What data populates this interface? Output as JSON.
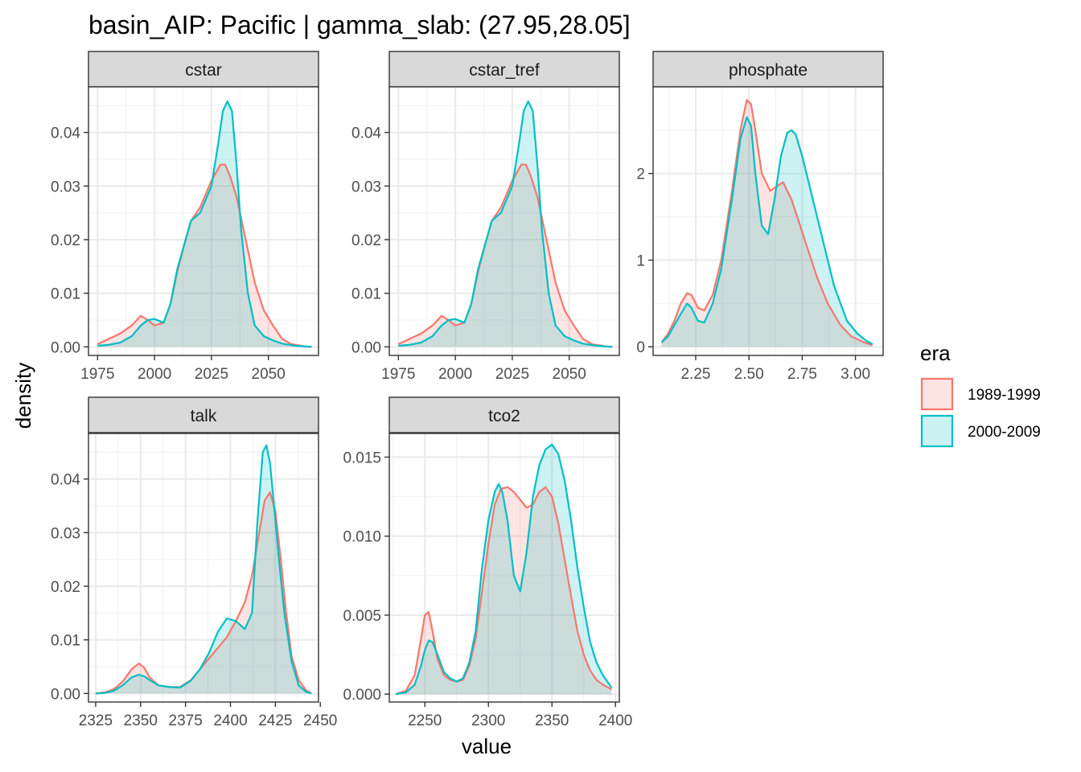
{
  "figure": {
    "title": "basin_AIP: Pacific | gamma_slab: (27.95,28.05]",
    "xlabel": "value",
    "ylabel": "density"
  },
  "legend": {
    "title": "era",
    "entries": [
      {
        "label": "1989-1999",
        "color": "#F8766D",
        "fill": "#F8766D",
        "fill_opacity": 0.2
      },
      {
        "label": "2000-2009",
        "color": "#00BFC4",
        "fill": "#00BFC4",
        "fill_opacity": 0.2
      }
    ]
  },
  "chart_data": [
    {
      "type": "area",
      "title": "cstar",
      "xlim": [
        1971,
        2072
      ],
      "ylim": [
        -0.0016,
        0.0485
      ],
      "x_ticks": [
        1975,
        2000,
        2025,
        2050
      ],
      "x_tick_labels": [
        "1975",
        "2000",
        "2025",
        "2050"
      ],
      "y_ticks": [
        0.0,
        0.01,
        0.02,
        0.03,
        0.04
      ],
      "y_tick_labels": [
        "0.00",
        "0.01",
        "0.02",
        "0.03",
        "0.04"
      ],
      "series": [
        {
          "name": "1989-1999",
          "x": [
            1975,
            1980,
            1985,
            1990,
            1994,
            1997,
            2000,
            2004,
            2007,
            2010,
            2013,
            2016,
            2020,
            2025,
            2029,
            2031,
            2033,
            2036,
            2040,
            2044,
            2048,
            2052,
            2056,
            2060,
            2066,
            2069
          ],
          "y": [
            0.0005,
            0.0015,
            0.0025,
            0.004,
            0.0058,
            0.005,
            0.004,
            0.0045,
            0.008,
            0.014,
            0.019,
            0.0235,
            0.026,
            0.031,
            0.034,
            0.034,
            0.032,
            0.028,
            0.02,
            0.012,
            0.0068,
            0.004,
            0.0015,
            0.0005,
            0.0001,
            0.0
          ]
        },
        {
          "name": "2000-2009",
          "x": [
            1975,
            1980,
            1985,
            1990,
            1994,
            1997,
            2000,
            2004,
            2007,
            2010,
            2013,
            2016,
            2020,
            2025,
            2028,
            2030,
            2032,
            2034,
            2036,
            2038,
            2041,
            2044,
            2048,
            2052,
            2056,
            2062,
            2069
          ],
          "y": [
            0.0002,
            0.0004,
            0.0008,
            0.002,
            0.004,
            0.005,
            0.0052,
            0.0045,
            0.008,
            0.0145,
            0.019,
            0.0235,
            0.025,
            0.03,
            0.038,
            0.044,
            0.0458,
            0.044,
            0.034,
            0.022,
            0.01,
            0.004,
            0.002,
            0.0012,
            0.0006,
            0.0002,
            0.0
          ]
        }
      ]
    },
    {
      "type": "area",
      "title": "cstar_tref",
      "xlim": [
        1971,
        2072
      ],
      "ylim": [
        -0.0016,
        0.0485
      ],
      "x_ticks": [
        1975,
        2000,
        2025,
        2050
      ],
      "x_tick_labels": [
        "1975",
        "2000",
        "2025",
        "2050"
      ],
      "y_ticks": [
        0.0,
        0.01,
        0.02,
        0.03,
        0.04
      ],
      "y_tick_labels": [
        "0.00",
        "0.01",
        "0.02",
        "0.03",
        "0.04"
      ],
      "series": [
        {
          "name": "1989-1999",
          "x": [
            1975,
            1980,
            1985,
            1990,
            1994,
            1997,
            2000,
            2004,
            2007,
            2010,
            2013,
            2016,
            2020,
            2025,
            2029,
            2031,
            2033,
            2036,
            2040,
            2044,
            2048,
            2052,
            2056,
            2060,
            2066,
            2069
          ],
          "y": [
            0.0005,
            0.0015,
            0.0025,
            0.004,
            0.0058,
            0.005,
            0.004,
            0.0045,
            0.008,
            0.014,
            0.019,
            0.0235,
            0.026,
            0.031,
            0.034,
            0.034,
            0.032,
            0.028,
            0.02,
            0.012,
            0.0068,
            0.004,
            0.0015,
            0.0005,
            0.0001,
            0.0
          ]
        },
        {
          "name": "2000-2009",
          "x": [
            1975,
            1980,
            1985,
            1990,
            1994,
            1997,
            2000,
            2004,
            2007,
            2010,
            2013,
            2016,
            2020,
            2025,
            2028,
            2030,
            2032,
            2034,
            2036,
            2038,
            2041,
            2044,
            2048,
            2052,
            2056,
            2062,
            2069
          ],
          "y": [
            0.0002,
            0.0004,
            0.0008,
            0.002,
            0.004,
            0.005,
            0.0052,
            0.0045,
            0.008,
            0.0145,
            0.019,
            0.0235,
            0.025,
            0.03,
            0.038,
            0.044,
            0.0458,
            0.044,
            0.034,
            0.022,
            0.01,
            0.004,
            0.002,
            0.0012,
            0.0006,
            0.0002,
            0.0
          ]
        }
      ]
    },
    {
      "type": "area",
      "title": "phosphate",
      "xlim": [
        2.05,
        3.13
      ],
      "ylim": [
        -0.1,
        3.0
      ],
      "x_ticks": [
        2.25,
        2.5,
        2.75,
        3.0
      ],
      "x_tick_labels": [
        "2.25",
        "2.50",
        "2.75",
        "3.00"
      ],
      "y_ticks": [
        0,
        1,
        2
      ],
      "y_tick_labels": [
        "0",
        "1",
        "2"
      ],
      "series": [
        {
          "name": "1989-1999",
          "x": [
            2.09,
            2.12,
            2.15,
            2.18,
            2.21,
            2.23,
            2.26,
            2.29,
            2.33,
            2.37,
            2.42,
            2.46,
            2.49,
            2.51,
            2.53,
            2.56,
            2.6,
            2.63,
            2.66,
            2.7,
            2.74,
            2.78,
            2.82,
            2.87,
            2.93,
            2.98,
            3.04,
            3.08
          ],
          "y": [
            0.05,
            0.15,
            0.3,
            0.5,
            0.62,
            0.6,
            0.45,
            0.42,
            0.6,
            1.0,
            1.8,
            2.5,
            2.85,
            2.8,
            2.5,
            2.0,
            1.8,
            1.85,
            1.9,
            1.7,
            1.4,
            1.1,
            0.8,
            0.5,
            0.25,
            0.12,
            0.05,
            0.02
          ]
        },
        {
          "name": "2000-2009",
          "x": [
            2.09,
            2.12,
            2.15,
            2.18,
            2.21,
            2.23,
            2.26,
            2.29,
            2.33,
            2.37,
            2.42,
            2.46,
            2.49,
            2.51,
            2.53,
            2.56,
            2.59,
            2.62,
            2.65,
            2.68,
            2.7,
            2.72,
            2.75,
            2.79,
            2.84,
            2.9,
            2.96,
            3.01,
            3.05,
            3.08
          ],
          "y": [
            0.05,
            0.12,
            0.25,
            0.38,
            0.5,
            0.45,
            0.3,
            0.28,
            0.5,
            0.9,
            1.7,
            2.4,
            2.65,
            2.55,
            2.0,
            1.4,
            1.3,
            1.7,
            2.2,
            2.47,
            2.5,
            2.45,
            2.2,
            1.8,
            1.3,
            0.7,
            0.3,
            0.15,
            0.07,
            0.03
          ]
        }
      ]
    },
    {
      "type": "area",
      "title": "talk",
      "xlim": [
        2321,
        2449
      ],
      "ylim": [
        -0.0016,
        0.0485
      ],
      "x_ticks": [
        2325,
        2350,
        2375,
        2400,
        2425,
        2450
      ],
      "x_tick_labels": [
        "2325",
        "2350",
        "2375",
        "2400",
        "2425",
        "2450"
      ],
      "y_ticks": [
        0.0,
        0.01,
        0.02,
        0.03,
        0.04
      ],
      "y_tick_labels": [
        "0.00",
        "0.01",
        "0.02",
        "0.03",
        "0.04"
      ],
      "series": [
        {
          "name": "1989-1999",
          "x": [
            2325,
            2330,
            2335,
            2340,
            2345,
            2349,
            2352,
            2355,
            2360,
            2366,
            2372,
            2378,
            2383,
            2388,
            2393,
            2398,
            2403,
            2408,
            2412,
            2416,
            2419,
            2422,
            2425,
            2428,
            2431,
            2434,
            2438,
            2442,
            2445
          ],
          "y": [
            0.0,
            0.0002,
            0.0008,
            0.0022,
            0.0045,
            0.0056,
            0.0048,
            0.003,
            0.0015,
            0.0012,
            0.0012,
            0.0025,
            0.0045,
            0.0065,
            0.0085,
            0.0105,
            0.0135,
            0.017,
            0.022,
            0.03,
            0.036,
            0.0375,
            0.034,
            0.025,
            0.015,
            0.007,
            0.0025,
            0.0006,
            0.0
          ]
        },
        {
          "name": "2000-2009",
          "x": [
            2325,
            2330,
            2335,
            2340,
            2345,
            2349,
            2352,
            2355,
            2360,
            2366,
            2372,
            2378,
            2383,
            2388,
            2393,
            2398,
            2403,
            2408,
            2412,
            2415,
            2418,
            2420,
            2422,
            2424,
            2427,
            2430,
            2434,
            2438,
            2442,
            2445
          ],
          "y": [
            0.0,
            0.0001,
            0.0005,
            0.0015,
            0.003,
            0.0035,
            0.0032,
            0.0025,
            0.0015,
            0.0012,
            0.0011,
            0.0024,
            0.0045,
            0.0075,
            0.0115,
            0.014,
            0.0135,
            0.012,
            0.015,
            0.032,
            0.045,
            0.0463,
            0.043,
            0.036,
            0.025,
            0.015,
            0.006,
            0.0015,
            0.0003,
            0.0
          ]
        }
      ]
    },
    {
      "type": "area",
      "title": "tco2",
      "xlim": [
        2222,
        2403
      ],
      "ylim": [
        -0.0005,
        0.0165
      ],
      "x_ticks": [
        2250,
        2300,
        2350,
        2400
      ],
      "x_tick_labels": [
        "2250",
        "2300",
        "2350",
        "2400"
      ],
      "y_ticks": [
        0.0,
        0.005,
        0.01,
        0.015
      ],
      "y_tick_labels": [
        "0.000",
        "0.005",
        "0.010",
        "0.015"
      ],
      "series": [
        {
          "name": "1989-1999",
          "x": [
            2227,
            2235,
            2242,
            2247,
            2250,
            2253,
            2256,
            2260,
            2265,
            2270,
            2275,
            2280,
            2285,
            2290,
            2295,
            2300,
            2305,
            2310,
            2315,
            2320,
            2325,
            2330,
            2335,
            2340,
            2345,
            2350,
            2355,
            2360,
            2365,
            2370,
            2375,
            2380,
            2385,
            2390,
            2397
          ],
          "y": [
            0.0,
            0.0002,
            0.0012,
            0.0035,
            0.005,
            0.0052,
            0.004,
            0.0022,
            0.0012,
            0.0009,
            0.0008,
            0.0009,
            0.0018,
            0.0035,
            0.0065,
            0.0095,
            0.012,
            0.013,
            0.0131,
            0.0128,
            0.0123,
            0.0118,
            0.012,
            0.0128,
            0.0131,
            0.0125,
            0.0108,
            0.0085,
            0.0062,
            0.004,
            0.0025,
            0.0015,
            0.0009,
            0.0006,
            0.0003
          ]
        },
        {
          "name": "2000-2009",
          "x": [
            2227,
            2235,
            2242,
            2247,
            2250,
            2253,
            2256,
            2260,
            2265,
            2270,
            2275,
            2280,
            2285,
            2290,
            2295,
            2300,
            2305,
            2308,
            2311,
            2315,
            2320,
            2325,
            2330,
            2335,
            2340,
            2345,
            2350,
            2355,
            2360,
            2365,
            2370,
            2375,
            2380,
            2385,
            2390,
            2397
          ],
          "y": [
            0.0,
            0.0001,
            0.0006,
            0.0018,
            0.0028,
            0.0034,
            0.0033,
            0.0025,
            0.0014,
            0.001,
            0.0008,
            0.001,
            0.002,
            0.004,
            0.008,
            0.011,
            0.0128,
            0.0133,
            0.0128,
            0.011,
            0.0075,
            0.0065,
            0.009,
            0.0125,
            0.0145,
            0.0155,
            0.0158,
            0.0152,
            0.0135,
            0.011,
            0.008,
            0.0055,
            0.0033,
            0.002,
            0.0012,
            0.0004
          ]
        }
      ]
    }
  ]
}
